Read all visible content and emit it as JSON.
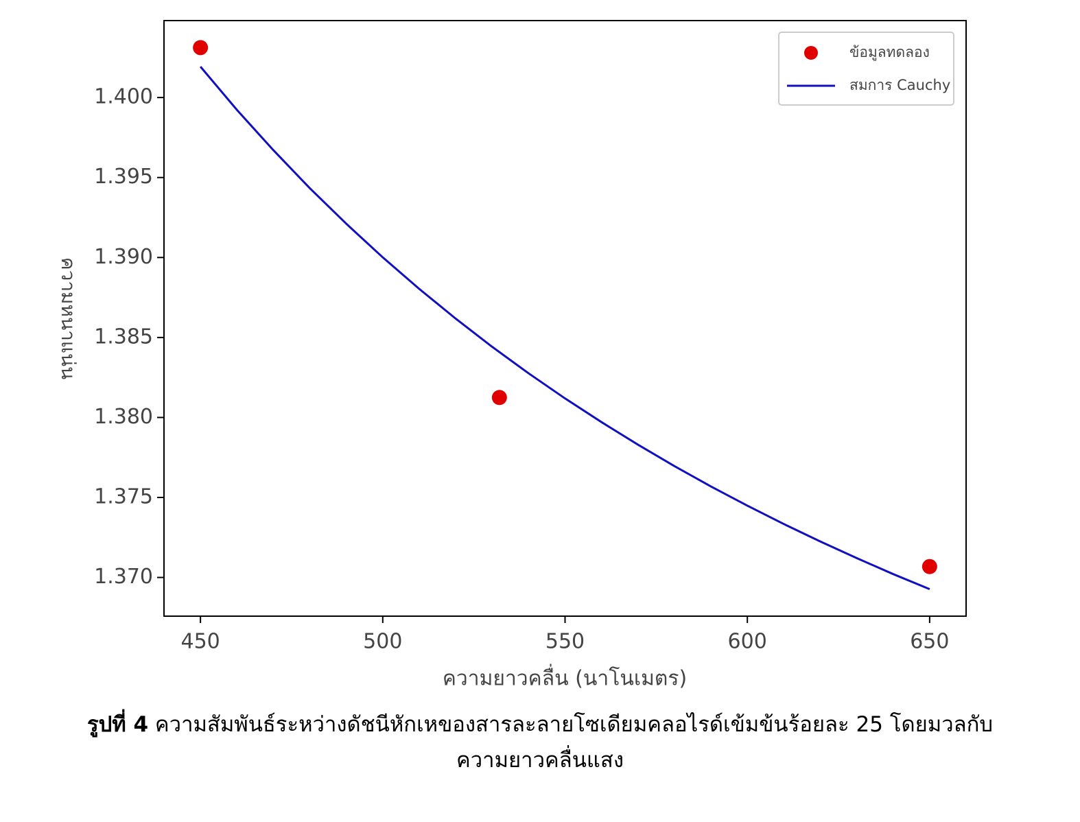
{
  "chart_data": {
    "type": "scatter",
    "xlabel": "ความยาวคลื่น (นาโนเมตร)",
    "ylabel": "ความหนาแน่น",
    "xlim": [
      440,
      660
    ],
    "ylim": [
      1.36758,
      1.40481
    ],
    "xticks": [
      450,
      500,
      550,
      600,
      650
    ],
    "yticks": [
      {
        "value": 1.37,
        "label": "1.370"
      },
      {
        "value": 1.375,
        "label": "1.375"
      },
      {
        "value": 1.38,
        "label": "1.380"
      },
      {
        "value": 1.385,
        "label": "1.385"
      },
      {
        "value": 1.39,
        "label": "1.390"
      },
      {
        "value": 1.395,
        "label": "1.395"
      },
      {
        "value": 1.4,
        "label": "1.400"
      }
    ],
    "legend": "upper right",
    "series": [
      {
        "name": "ข้อมูลทดลอง",
        "mode": "markers",
        "color": "#e00000",
        "x": [
          450,
          532,
          650
        ],
        "values": [
          1.40312,
          1.38125,
          1.37068
        ]
      },
      {
        "name": "สมการ Cauchy",
        "mode": "line",
        "color": "#1010c0",
        "x": [
          450,
          460,
          470,
          480,
          490,
          500,
          510,
          520,
          530,
          540,
          550,
          560,
          570,
          580,
          590,
          600,
          610,
          620,
          630,
          640,
          650
        ],
        "values": [
          1.40193,
          1.39923,
          1.39671,
          1.39433,
          1.39211,
          1.39001,
          1.38804,
          1.38618,
          1.38442,
          1.38276,
          1.38119,
          1.37971,
          1.3783,
          1.37696,
          1.37569,
          1.37449,
          1.37334,
          1.37225,
          1.37121,
          1.37021,
          1.36927
        ]
      }
    ]
  },
  "caption": {
    "label": "รูปที่ 4",
    "text": "ความสัมพันธ์ระหว่างดัชนีหักเหของสารละลายโซเดียมคลอไรด์เข้มข้นร้อยละ 25 โดยมวลกับความยาวคลื่นแสง"
  }
}
